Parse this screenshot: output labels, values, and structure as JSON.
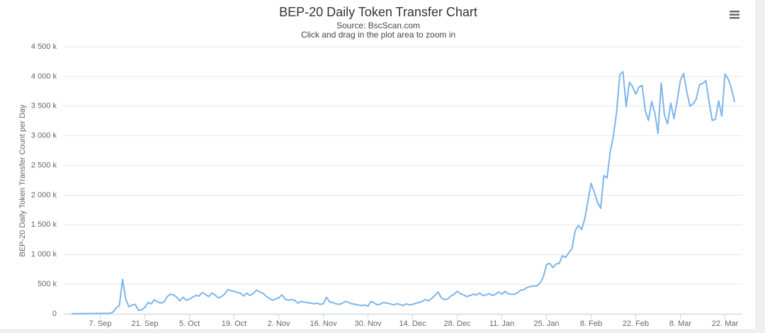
{
  "chart_data": {
    "type": "line",
    "title": "BEP-20 Daily Token Transfer Chart",
    "subtitle": "Source: BscScan.com",
    "note": "Click and drag in the plot area to zoom in",
    "y_label": "BEP-20 Daily Token Transfer Count per Day",
    "color": "#7cb5ec",
    "grid": true,
    "ylim": [
      0,
      4500
    ],
    "yticks": [
      0,
      {
        "value": 500,
        "label": "500 k"
      },
      {
        "value": 1000,
        "label": "1 000 k"
      },
      {
        "value": 1500,
        "label": "1 500 k"
      },
      {
        "value": 2000,
        "label": "2 000 k"
      },
      {
        "value": 2500,
        "label": "2 500 k"
      },
      {
        "value": 3000,
        "label": "3 000 k"
      },
      {
        "value": 3500,
        "label": "3 500 k"
      },
      {
        "value": 4000,
        "label": "4 000 k"
      },
      {
        "value": 4500,
        "label": "4 500 k"
      }
    ],
    "categories": [
      null,
      null,
      null,
      null,
      null,
      null,
      null,
      null,
      null,
      "7. Sep",
      null,
      null,
      null,
      null,
      null,
      null,
      null,
      null,
      null,
      null,
      null,
      null,
      null,
      "21. Sep",
      null,
      null,
      null,
      null,
      null,
      null,
      null,
      null,
      null,
      null,
      null,
      null,
      null,
      "5. Oct",
      null,
      null,
      null,
      null,
      null,
      null,
      null,
      null,
      null,
      null,
      null,
      null,
      null,
      "19. Oct",
      null,
      null,
      null,
      null,
      null,
      null,
      null,
      null,
      null,
      null,
      null,
      null,
      null,
      "2. Nov",
      null,
      null,
      null,
      null,
      null,
      null,
      null,
      null,
      null,
      null,
      null,
      null,
      null,
      "16. Nov",
      null,
      null,
      null,
      null,
      null,
      null,
      null,
      null,
      null,
      null,
      null,
      null,
      null,
      "30. Nov",
      null,
      null,
      null,
      null,
      null,
      null,
      null,
      null,
      null,
      null,
      null,
      null,
      null,
      "14. Dec",
      null,
      null,
      null,
      null,
      null,
      null,
      null,
      null,
      null,
      null,
      null,
      null,
      null,
      "28. Dec",
      null,
      null,
      null,
      null,
      null,
      null,
      null,
      null,
      null,
      null,
      null,
      null,
      null,
      "11. Jan",
      null,
      null,
      null,
      null,
      null,
      null,
      null,
      null,
      null,
      null,
      null,
      null,
      null,
      "25. Jan",
      null,
      null,
      null,
      null,
      null,
      null,
      null,
      null,
      null,
      null,
      null,
      null,
      null,
      "8. Feb",
      null,
      null,
      null,
      null,
      null,
      null,
      null,
      null,
      null,
      null,
      null,
      null,
      null,
      "22. Feb",
      null,
      null,
      null,
      null,
      null,
      null,
      null,
      null,
      null,
      null,
      null,
      null,
      null,
      "8. Mar",
      null,
      null,
      null,
      null,
      null,
      null,
      null,
      null,
      null,
      null,
      null,
      null,
      null,
      "22. Mar",
      null,
      null,
      null
    ],
    "values": [
      2,
      3,
      4,
      4,
      5,
      5,
      6,
      6,
      7,
      7,
      8,
      9,
      10,
      30,
      100,
      140,
      580,
      250,
      120,
      150,
      160,
      60,
      70,
      110,
      190,
      170,
      240,
      200,
      180,
      200,
      290,
      330,
      320,
      280,
      220,
      280,
      230,
      250,
      280,
      310,
      300,
      360,
      330,
      290,
      350,
      320,
      270,
      290,
      330,
      410,
      390,
      380,
      360,
      350,
      300,
      350,
      310,
      340,
      400,
      370,
      350,
      300,
      260,
      230,
      250,
      270,
      320,
      250,
      230,
      240,
      230,
      180,
      210,
      200,
      190,
      180,
      170,
      180,
      160,
      170,
      280,
      200,
      190,
      170,
      160,
      180,
      210,
      190,
      170,
      160,
      150,
      140,
      150,
      130,
      210,
      180,
      150,
      170,
      190,
      180,
      170,
      150,
      170,
      160,
      140,
      170,
      150,
      160,
      180,
      190,
      210,
      240,
      220,
      260,
      310,
      370,
      270,
      240,
      250,
      300,
      330,
      380,
      340,
      320,
      290,
      310,
      330,
      320,
      350,
      310,
      320,
      340,
      310,
      330,
      370,
      330,
      380,
      340,
      330,
      330,
      360,
      400,
      410,
      450,
      460,
      470,
      470,
      520,
      620,
      830,
      850,
      780,
      840,
      850,
      980,
      950,
      1030,
      1100,
      1400,
      1490,
      1420,
      1600,
      1900,
      2200,
      2050,
      1880,
      1780,
      2330,
      2290,
      2730,
      3000,
      3400,
      4030,
      4080,
      3490,
      3900,
      3830,
      3700,
      3820,
      3850,
      3420,
      3260,
      3580,
      3380,
      3040,
      3890,
      3350,
      3200,
      3550,
      3290,
      3590,
      3930,
      4050,
      3750,
      3500,
      3540,
      3620,
      3860,
      3880,
      3930,
      3580,
      3260,
      3280,
      3590,
      3330,
      4040,
      3960,
      3800,
      3570
    ]
  }
}
